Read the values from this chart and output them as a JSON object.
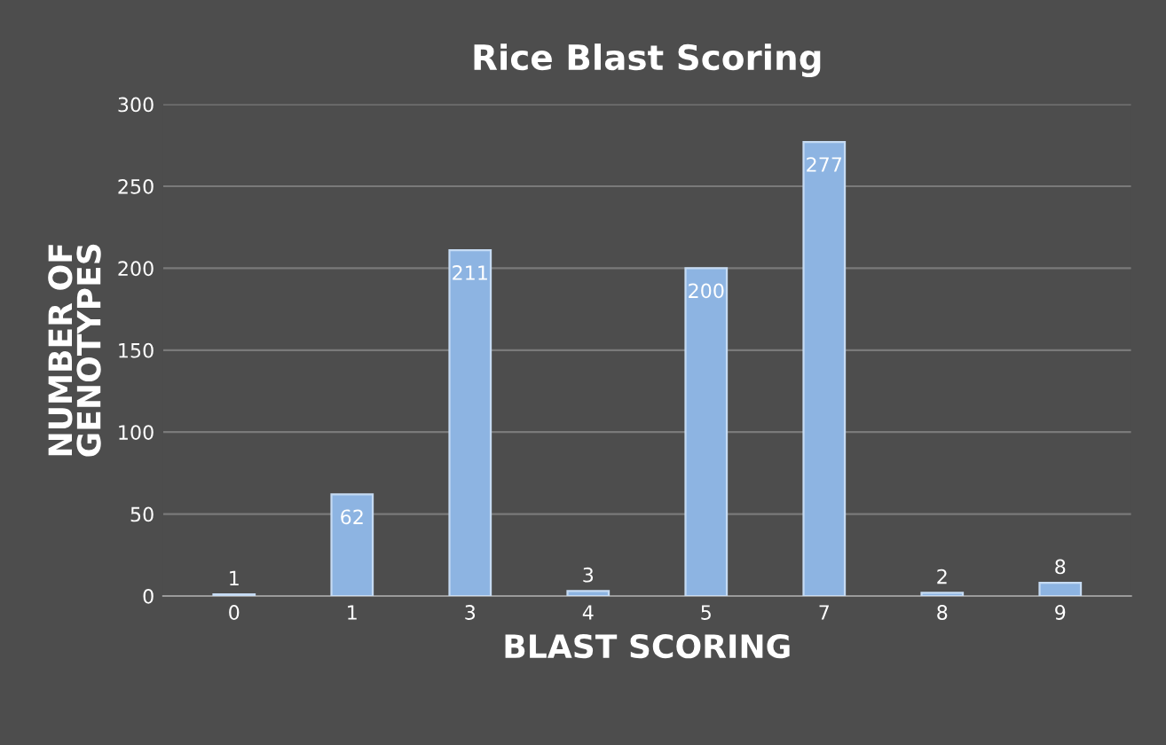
{
  "chart_data": {
    "type": "bar",
    "title": "Rice Blast Scoring",
    "xlabel": "BLAST SCORING",
    "ylabel": "NUMBER OF\nGENOTYPES",
    "categories": [
      "0",
      "1",
      "3",
      "4",
      "5",
      "7",
      "8",
      "9"
    ],
    "values": [
      1,
      62,
      211,
      3,
      200,
      277,
      2,
      8
    ],
    "color": "#8db4e2",
    "ylim": [
      0,
      300
    ],
    "yticks": [
      0,
      50,
      100,
      150,
      200,
      250,
      300
    ],
    "grid": "y",
    "data_labels": true
  }
}
